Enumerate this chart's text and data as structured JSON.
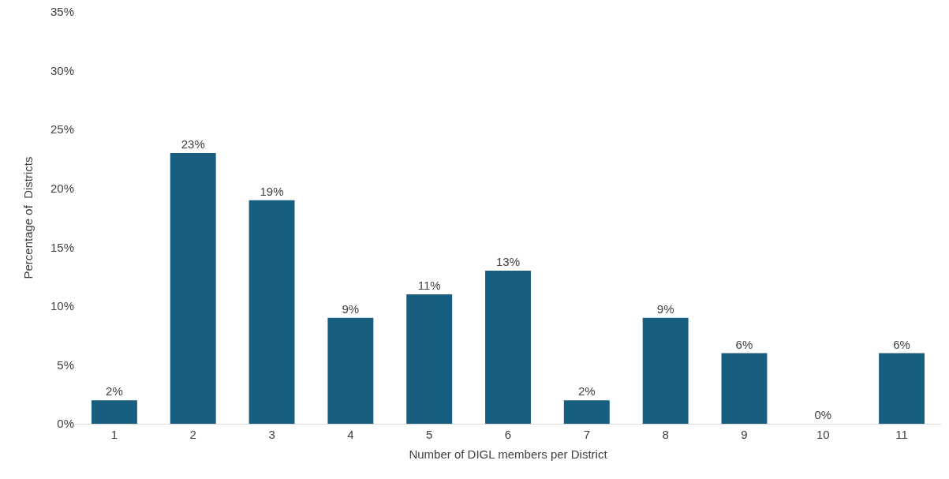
{
  "chart_data": {
    "type": "bar",
    "xlabel": "Number of DIGL members per District",
    "ylabel": "Percentage of  Districts",
    "categories": [
      "1",
      "2",
      "3",
      "4",
      "5",
      "6",
      "7",
      "8",
      "9",
      "10",
      "11"
    ],
    "values": [
      2,
      23,
      19,
      9,
      11,
      13,
      2,
      9,
      6,
      0,
      6
    ],
    "color": "#175e7f",
    "ylim": [
      0,
      35
    ],
    "yticks": [
      {
        "value": 0,
        "label": "0%"
      },
      {
        "value": 5,
        "label": "5%"
      },
      {
        "value": 10,
        "label": "10%"
      },
      {
        "value": 15,
        "label": "15%"
      },
      {
        "value": 20,
        "label": "20%"
      },
      {
        "value": 25,
        "label": "25%"
      },
      {
        "value": 30,
        "label": "30%"
      },
      {
        "value": 35,
        "label": "35%"
      }
    ],
    "value_labels": [
      "2%",
      "23%",
      "19%",
      "9%",
      "11%",
      "13%",
      "2%",
      "9%",
      "6%",
      "0%",
      "6%"
    ],
    "grid": false
  }
}
